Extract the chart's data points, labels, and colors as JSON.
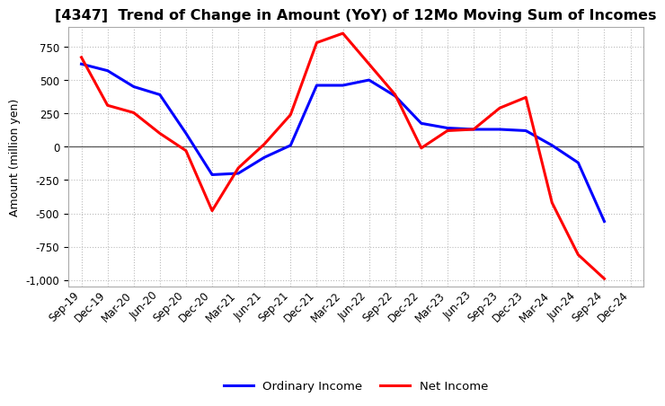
{
  "title": "[4347]  Trend of Change in Amount (YoY) of 12Mo Moving Sum of Incomes",
  "ylabel": "Amount (million yen)",
  "xlabels": [
    "Sep-19",
    "Dec-19",
    "Mar-20",
    "Jun-20",
    "Sep-20",
    "Dec-20",
    "Mar-21",
    "Jun-21",
    "Sep-21",
    "Dec-21",
    "Mar-22",
    "Jun-22",
    "Sep-22",
    "Dec-22",
    "Mar-23",
    "Jun-23",
    "Sep-23",
    "Dec-23",
    "Mar-24",
    "Jun-24",
    "Sep-24",
    "Dec-24"
  ],
  "ordinary_income": [
    620,
    570,
    450,
    390,
    100,
    -210,
    -200,
    -80,
    10,
    460,
    460,
    500,
    380,
    175,
    140,
    130,
    130,
    120,
    10,
    -120,
    -560,
    null
  ],
  "net_income": [
    670,
    310,
    255,
    100,
    -30,
    -480,
    -160,
    20,
    240,
    780,
    850,
    620,
    390,
    -10,
    120,
    130,
    290,
    370,
    -420,
    -810,
    -990,
    null
  ],
  "ordinary_color": "#0000ff",
  "net_color": "#ff0000",
  "ylim": [
    -1050,
    900
  ],
  "yticks": [
    -1000,
    -750,
    -500,
    -250,
    0,
    250,
    500,
    750
  ],
  "bg_color": "#ffffff",
  "grid_color": "#bbbbbb",
  "linewidth": 2.2,
  "title_fontsize": 11.5,
  "ylabel_fontsize": 9,
  "tick_fontsize": 8.5,
  "legend_fontsize": 9.5
}
